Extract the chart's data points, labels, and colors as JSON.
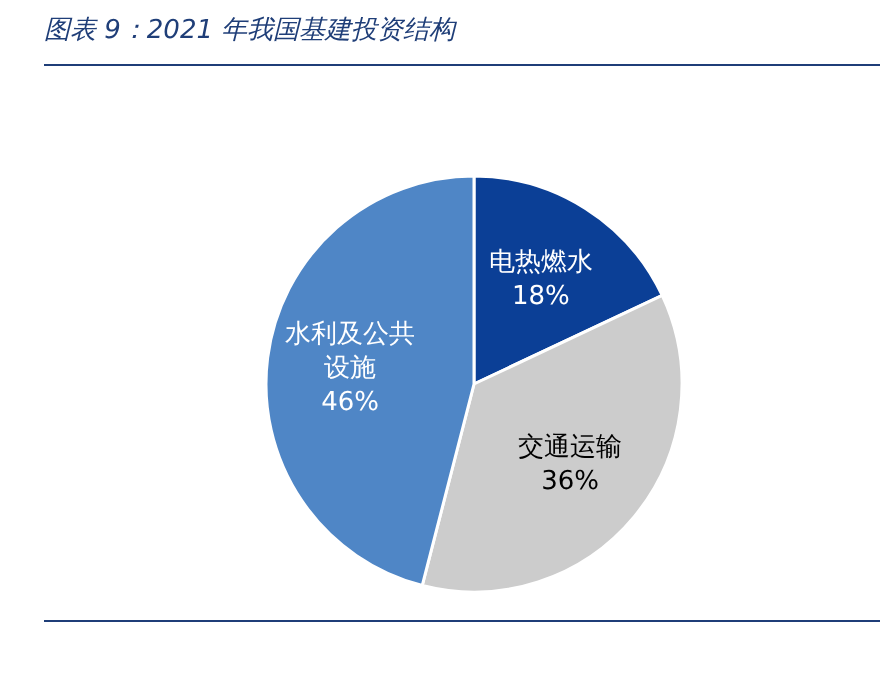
{
  "chart_data": {
    "type": "pie",
    "title": "图表 9：2021 年我国基建投资结构",
    "categories": [
      "电热燃水",
      "交通运输",
      "水利及公共设施"
    ],
    "values": [
      18,
      36,
      46
    ],
    "colors": [
      "#0b3f96",
      "#cccccc",
      "#4f86c6"
    ],
    "value_labels": [
      "18%",
      "36%",
      "46%"
    ],
    "legend": false
  }
}
